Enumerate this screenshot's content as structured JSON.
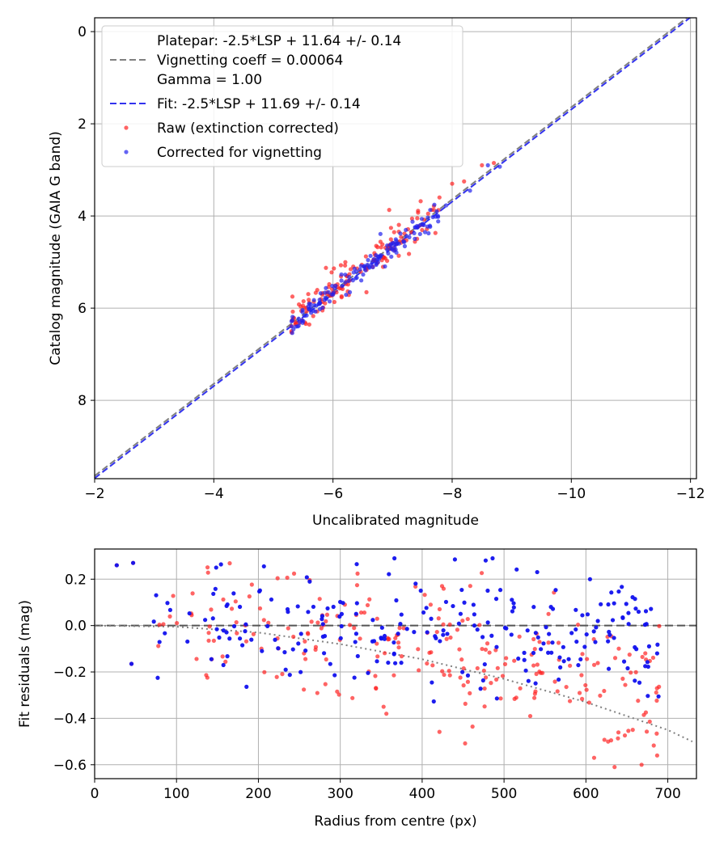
{
  "chart_data": [
    {
      "type": "scatter",
      "xlabel": "Uncalibrated magnitude",
      "ylabel": "Catalog magnitude (GAIA G band)",
      "xlim": [
        -2,
        -12.1
      ],
      "ylim": [
        9.7,
        -0.3
      ],
      "x_inverted": true,
      "y_inverted": true,
      "xticks": [
        -2,
        -4,
        -6,
        -8,
        -10,
        -12
      ],
      "yticks": [
        0,
        2,
        4,
        6,
        8
      ],
      "xtick_labels": [
        "−2",
        "−4",
        "−6",
        "−8",
        "−10",
        "−12"
      ],
      "ytick_labels": [
        "0",
        "2",
        "4",
        "6",
        "8"
      ],
      "grid": true,
      "legend_position": "top-left",
      "lines": [
        {
          "name": "platepar",
          "label_lines": [
            "Platepar: -2.5*LSP + 11.64 +/- 0.14",
            "Vignetting coeff = 0.00064",
            "Gamma = 1.00"
          ],
          "slope": 1,
          "intercept": 11.64,
          "color": "#808080",
          "dash": "8,4"
        },
        {
          "name": "fit",
          "label_lines": [
            "Fit: -2.5*LSP + 11.69 +/- 0.14"
          ],
          "slope": 1,
          "intercept": 11.69,
          "color": "#3333ee",
          "dash": "8,4"
        }
      ],
      "series": [
        {
          "name": "raw",
          "label": "Raw (extinction corrected)",
          "color": "#ff2222",
          "alpha": 0.7,
          "cluster": {
            "x_range": [
              -5.3,
              -7.8
            ],
            "offset": 11.62,
            "spread": 0.2,
            "count": 150
          },
          "outliers": [
            [
              -8.5,
              2.9
            ],
            [
              -8.2,
              3.25
            ],
            [
              -8.0,
              3.3
            ],
            [
              -8.7,
              2.85
            ]
          ]
        },
        {
          "name": "vignetting",
          "label": "Corrected for vignetting",
          "color": "#2222ee",
          "alpha": 0.7,
          "cluster": {
            "x_range": [
              -5.3,
              -7.8
            ],
            "offset": 11.69,
            "spread": 0.12,
            "count": 150
          },
          "outliers": [
            [
              -8.8,
              2.93
            ],
            [
              -8.6,
              2.9
            ],
            [
              -8.3,
              3.45
            ],
            [
              -7.9,
              3.77
            ]
          ]
        }
      ]
    },
    {
      "type": "scatter",
      "xlabel": "Radius from centre (px)",
      "ylabel": "Fit residuals (mag)",
      "xlim": [
        0,
        735
      ],
      "ylim": [
        -0.66,
        0.33
      ],
      "xticks": [
        0,
        100,
        200,
        300,
        400,
        500,
        600,
        700
      ],
      "yticks": [
        -0.6,
        -0.4,
        -0.2,
        0.0,
        0.2
      ],
      "xtick_labels": [
        "0",
        "100",
        "200",
        "300",
        "400",
        "500",
        "600",
        "700"
      ],
      "ytick_labels": [
        "−0.6",
        "−0.4",
        "−0.2",
        "0.0",
        "0.2"
      ],
      "grid": true,
      "zero_line": {
        "y": 0,
        "color": "#555555",
        "dash": "10,5"
      },
      "vignetting_curve": {
        "color": "#808080",
        "dash": "2,4",
        "points": [
          [
            0,
            0
          ],
          [
            100,
            -0.005
          ],
          [
            200,
            -0.03
          ],
          [
            300,
            -0.08
          ],
          [
            400,
            -0.145
          ],
          [
            500,
            -0.23
          ],
          [
            600,
            -0.33
          ],
          [
            700,
            -0.45
          ],
          [
            730,
            -0.5
          ]
        ]
      },
      "series": [
        {
          "name": "raw",
          "color": "#ff2222",
          "alpha": 0.7,
          "count": 240,
          "fixed": [
            [
              27,
              0.26
            ],
            [
              47,
              0.27
            ],
            [
              45,
              -0.165
            ],
            [
              635,
              -0.61
            ],
            [
              668,
              -0.6
            ],
            [
              687,
              -0.56
            ],
            [
              610,
              -0.57
            ]
          ]
        },
        {
          "name": "vignetting",
          "color": "#1111ee",
          "alpha": 0.95,
          "count": 230,
          "fixed": [
            [
              27,
              0.26
            ],
            [
              47,
              0.27
            ],
            [
              45,
              -0.165
            ],
            [
              440,
              0.285
            ],
            [
              605,
              0.2
            ],
            [
              660,
              0.115
            ],
            [
              687,
              -0.12
            ]
          ]
        }
      ]
    }
  ]
}
